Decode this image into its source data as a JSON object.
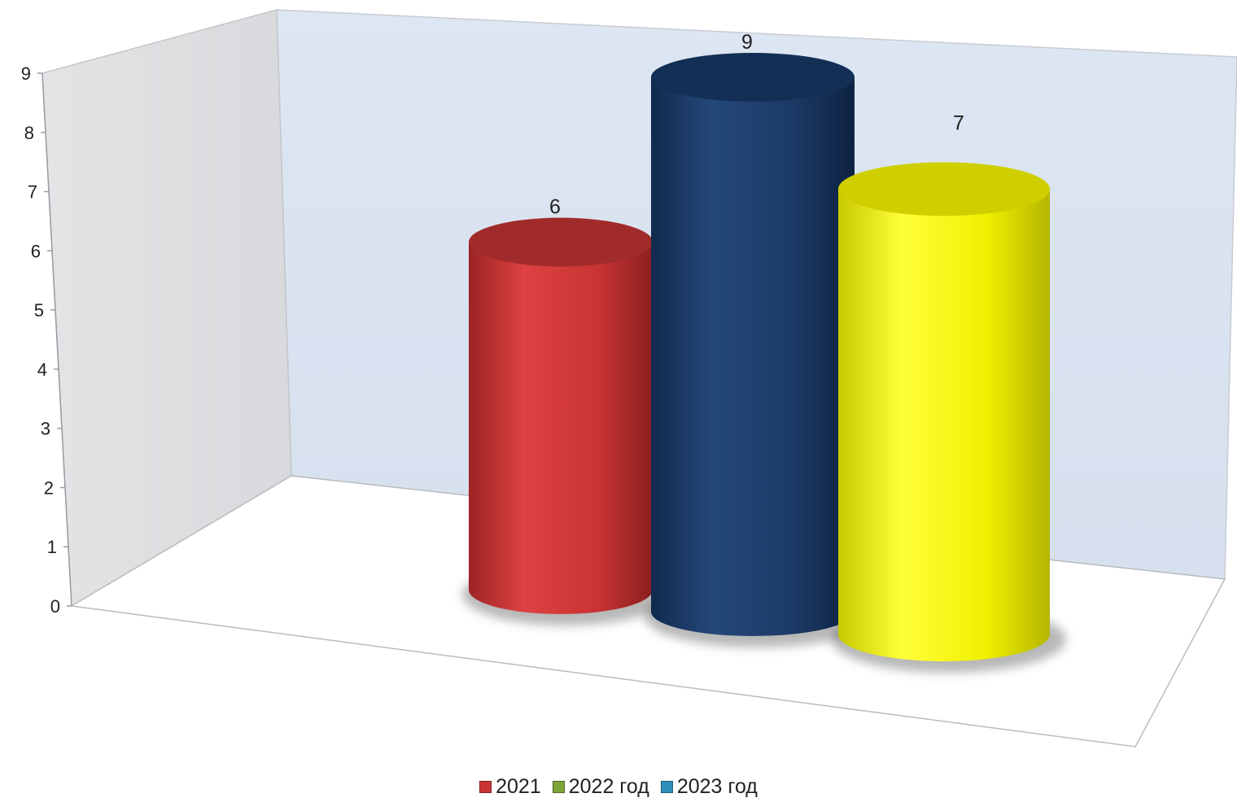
{
  "chart_data": {
    "type": "bar",
    "title": "",
    "xlabel": "",
    "ylabel": "",
    "ylim": [
      0,
      9
    ],
    "y_ticks": [
      "0",
      "1",
      "2",
      "3",
      "4",
      "5",
      "6",
      "7",
      "8",
      "9"
    ],
    "grid": false,
    "legend_position": "bottom",
    "style": "3d-cylinder",
    "series": [
      {
        "name": "2021",
        "value": 6,
        "label": "6",
        "color": "#d2393a"
      },
      {
        "name": "2022 год",
        "value": 9,
        "label": "9",
        "color": "#1b3a66"
      },
      {
        "name": "2023 год",
        "value": 7,
        "label": "7",
        "color": "#f2f200"
      }
    ]
  },
  "legend": {
    "items": [
      {
        "label": "2021",
        "color": "#c93434"
      },
      {
        "label": "2022 год",
        "color": "#7ea33a"
      },
      {
        "label": "2023 год",
        "color": "#2f8fb8"
      }
    ]
  }
}
